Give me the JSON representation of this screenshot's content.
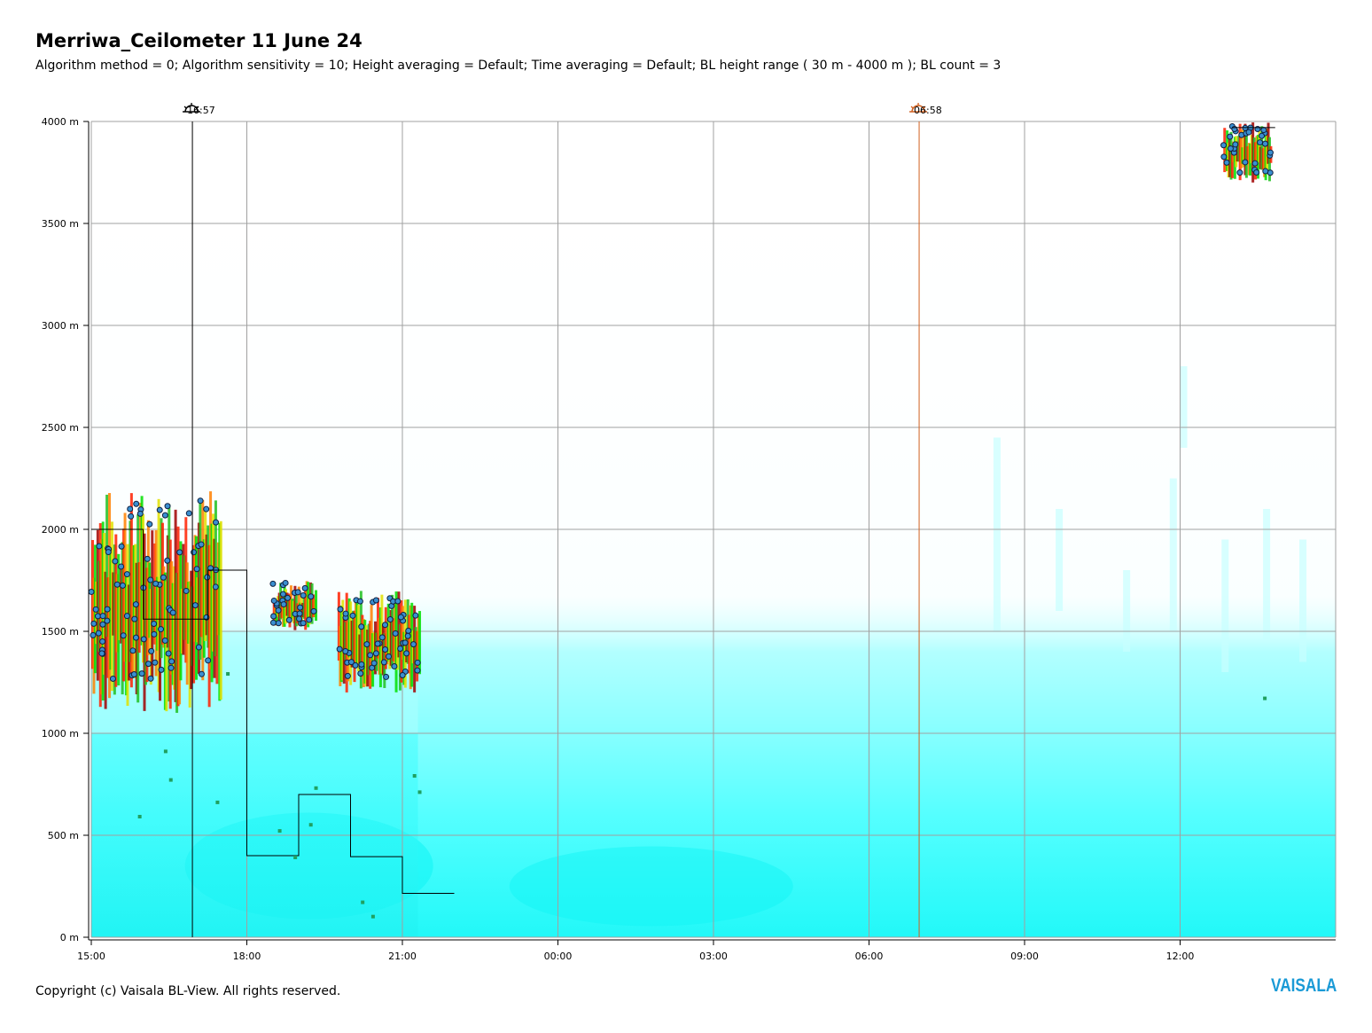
{
  "header": {
    "title": "Merriwa_Ceilometer 11 June 24",
    "subtitle": "Algorithm method = 0; Algorithm sensitivity = 10; Height averaging = Default; Time averaging = Default; BL height range ( 30 m - 4000 m ); BL count = 3"
  },
  "footer": {
    "copyright": "Copyright (c) Vaisala BL-View. All rights reserved.",
    "brand": "VAISALA"
  },
  "chart_data": {
    "type": "heatmap",
    "title": "Merriwa_Ceilometer 11 June 24",
    "xlim_hours_from_start": [
      0,
      24
    ],
    "ylim": [
      0,
      4000
    ],
    "y_unit": "m",
    "x_ticks": [
      "15:00",
      "18:00",
      "21:00",
      "00:00",
      "03:00",
      "06:00",
      "09:00",
      "12:00"
    ],
    "y_ticks": [
      "0 m",
      "500 m",
      "1000 m",
      "1500 m",
      "2000 m",
      "2500 m",
      "3000 m",
      "3500 m",
      "4000 m"
    ],
    "grid": true,
    "markers": [
      {
        "kind": "sunset",
        "label": "16:57",
        "color": "#000000"
      },
      {
        "kind": "sunrise",
        "label": "06:58",
        "color": "#d06020"
      }
    ],
    "boundary_layer_steps": [
      {
        "from": "15:00",
        "to": "16:00",
        "height": 2000
      },
      {
        "from": "16:00",
        "to": "17:15",
        "height": 1560
      },
      {
        "from": "17:15",
        "to": "18:00",
        "height": 1800
      },
      {
        "from": "18:00",
        "to": "19:00",
        "height": 400
      },
      {
        "from": "19:00",
        "to": "20:00",
        "height": 700
      },
      {
        "from": "20:00",
        "to": "21:00",
        "height": 395
      },
      {
        "from": "21:00",
        "to": "22:00",
        "height": 215
      },
      {
        "from": "13:00",
        "to": "13:50",
        "height": 3970
      }
    ],
    "cloud_base_clusters": [
      {
        "from": "15:00",
        "to": "17:30",
        "base": 1100,
        "top": 2200
      },
      {
        "from": "18:30",
        "to": "19:20",
        "base": 1500,
        "top": 1750
      },
      {
        "from": "19:45",
        "to": "21:20",
        "base": 1200,
        "top": 1700
      },
      {
        "from": "12:50",
        "to": "13:45",
        "base": 3700,
        "top": 4000
      }
    ],
    "colors": {
      "backscatter_low": "#00ffff",
      "grid": "#a0a0a0",
      "boundary_layer": "#000000",
      "cloud_points": "#2060a0"
    }
  }
}
